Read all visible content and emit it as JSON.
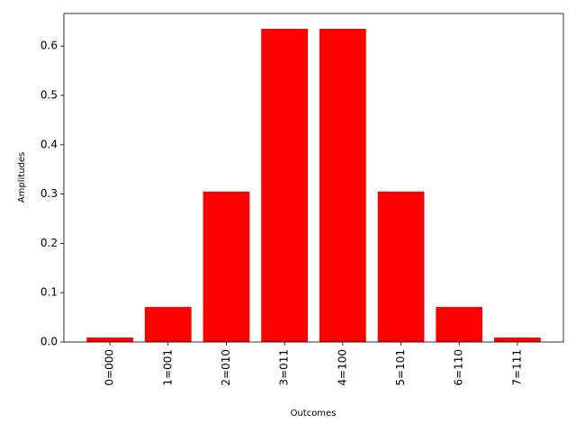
{
  "chart_data": {
    "type": "bar",
    "x_label": "Outcomes",
    "y_label": "Amplitudes",
    "categories": [
      "0=000",
      "1=001",
      "2=010",
      "3=011",
      "4=100",
      "5=101",
      "6=110",
      "7=111"
    ],
    "values": [
      0.009,
      0.071,
      0.305,
      0.635,
      0.635,
      0.305,
      0.071,
      0.009
    ],
    "color": "#ff0000",
    "ylim": [
      0,
      0.666
    ],
    "yticks": [
      {
        "value": 0,
        "label": "0.0"
      },
      0.1,
      0.2,
      0.3,
      0.4,
      0.5,
      0.6
    ]
  }
}
